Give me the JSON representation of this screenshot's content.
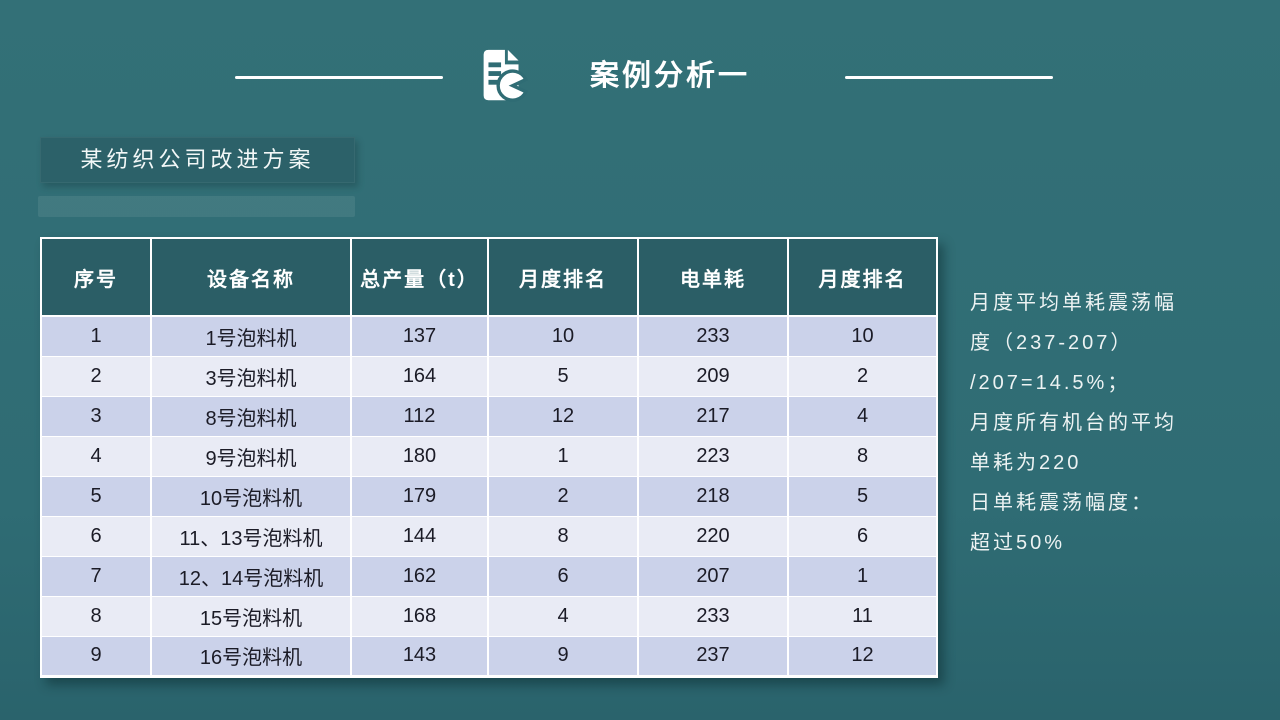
{
  "header": {
    "title": "案例分析一",
    "icon": "document-pie-chart-icon"
  },
  "subtitle": {
    "label": "某纺织公司改进方案"
  },
  "table": {
    "headers": [
      "序号",
      "设备名称",
      "总产量（t）",
      "月度排名",
      "电单耗",
      "月度排名"
    ],
    "rows": [
      [
        "1",
        "1号泡料机",
        "137",
        "10",
        "233",
        "10"
      ],
      [
        "2",
        "3号泡料机",
        "164",
        "5",
        "209",
        "2"
      ],
      [
        "3",
        "8号泡料机",
        "112",
        "12",
        "217",
        "4"
      ],
      [
        "4",
        "9号泡料机",
        "180",
        "1",
        "223",
        "8"
      ],
      [
        "5",
        "10号泡料机",
        "179",
        "2",
        "218",
        "5"
      ],
      [
        "6",
        "11、13号泡料机",
        "144",
        "8",
        "220",
        "6"
      ],
      [
        "7",
        "12、14号泡料机",
        "162",
        "6",
        "207",
        "1"
      ],
      [
        "8",
        "15号泡料机",
        "168",
        "4",
        "233",
        "11"
      ],
      [
        "9",
        "16号泡料机",
        "143",
        "9",
        "237",
        "12"
      ]
    ]
  },
  "note": {
    "lines": [
      "月度平均单耗震荡幅",
      "度（237-207）",
      "/207=14.5%；",
      "月度所有机台的平均",
      "单耗为220",
      "日单耗震荡幅度：",
      "超过50%"
    ]
  },
  "colors": {
    "background": "#2F6C74",
    "table_header": "#2B5E66",
    "subtitle_box": "#2C6169",
    "row_odd": "#CBD2EA",
    "row_even": "#E9EBF5",
    "cell_text": "#1B1B26",
    "accent_white": "#FFFFFF"
  }
}
